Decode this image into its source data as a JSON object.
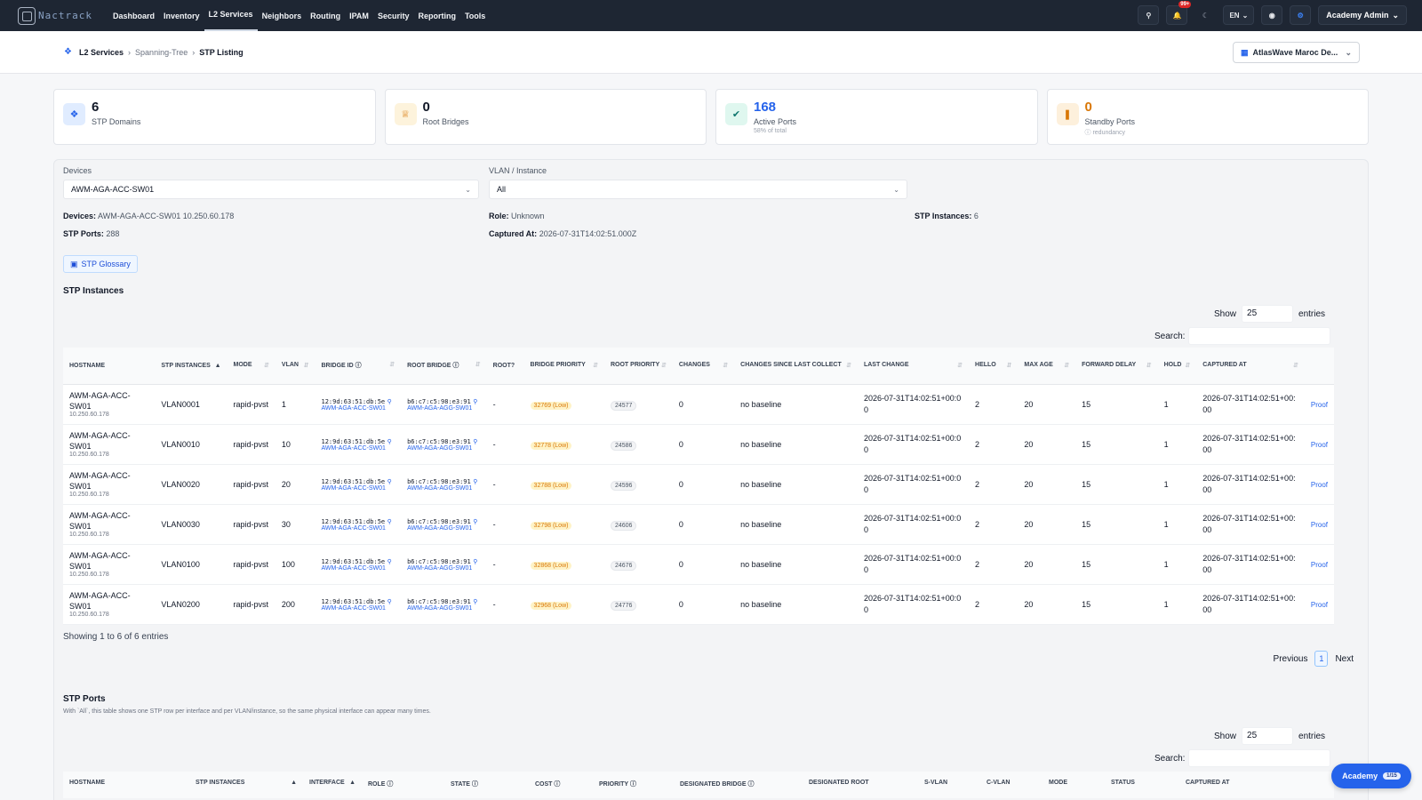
{
  "app": {
    "brand": "Nactrack"
  },
  "nav": [
    "Dashboard",
    "Inventory",
    "L2 Services",
    "Neighbors",
    "Routing",
    "IPAM",
    "Security",
    "Reporting",
    "Tools"
  ],
  "top": {
    "notifications": "99+",
    "lang": "EN",
    "user": "Academy Admin"
  },
  "breadcrumb": {
    "l1": "L2 Services",
    "l2": "Spanning-Tree",
    "l3": "STP Listing"
  },
  "tenant": "AtlasWave Maroc De...",
  "kpis": [
    {
      "value": "6",
      "label": "STP Domains",
      "sub": "",
      "color": "#111827"
    },
    {
      "value": "0",
      "label": "Root Bridges",
      "sub": "",
      "color": "#111827"
    },
    {
      "value": "168",
      "label": "Active Ports",
      "sub": "58% of total",
      "color": "#2563eb"
    },
    {
      "value": "0",
      "label": "Standby Ports",
      "sub": "redundancy",
      "color": "#d97706"
    }
  ],
  "filters": {
    "devices_label": "Devices",
    "devices_value": "AWM-AGA-ACC-SW01",
    "vlan_label": "VLAN / Instance",
    "vlan_value": "All"
  },
  "details": {
    "devices_label": "Devices:",
    "devices_value": "AWM-AGA-ACC-SW01 10.250.60.178",
    "role_label": "Role:",
    "role_value": "Unknown",
    "instances_label": "STP Instances:",
    "instances_value": "6",
    "ports_label": "STP Ports:",
    "ports_value": "288",
    "captured_label": "Captured At:",
    "captured_value": "2026-07-31T14:02:51.000Z"
  },
  "glossary": "STP Glossary",
  "instances": {
    "title": "STP Instances",
    "show": "Show",
    "show_value": "25",
    "entries": "entries",
    "search": "Search:",
    "columns": [
      "HOSTNAME",
      "STP INSTANCES",
      "MODE",
      "VLAN",
      "BRIDGE ID",
      "ROOT BRIDGE",
      "ROOT?",
      "BRIDGE PRIORITY",
      "ROOT PRIORITY",
      "CHANGES",
      "CHANGES SINCE LAST COLLECT",
      "LAST CHANGE",
      "HELLO",
      "MAX AGE",
      "FORWARD DELAY",
      "HOLD",
      "CAPTURED AT",
      ""
    ],
    "rows": [
      {
        "host": "AWM-AGA-ACC-SW01",
        "ip": "10.250.60.178",
        "inst": "VLAN0001",
        "mode": "rapid-pvst",
        "vlan": "1",
        "bid": "12:9d:63:51:db:5e",
        "bid_host": "AWM-AGA-ACC-SW01",
        "rb": "b6:c7:c5:98:e3:91",
        "rb_host": "AWM-AGA-AGG-SW01",
        "root": "-",
        "bprio": "32769 (Low)",
        "rprio": "24577",
        "changes": "0",
        "since": "no baseline",
        "last": "2026-07-31T14:02:51+00:00",
        "hello": "2",
        "maxage": "20",
        "fwd": "15",
        "hold": "1",
        "cap": "2026-07-31T14:02:51+00:00",
        "proof": "Proof"
      },
      {
        "host": "AWM-AGA-ACC-SW01",
        "ip": "10.250.60.178",
        "inst": "VLAN0010",
        "mode": "rapid-pvst",
        "vlan": "10",
        "bid": "12:9d:63:51:db:5e",
        "bid_host": "AWM-AGA-ACC-SW01",
        "rb": "b6:c7:c5:98:e3:91",
        "rb_host": "AWM-AGA-AGG-SW01",
        "root": "-",
        "bprio": "32778 (Low)",
        "rprio": "24586",
        "changes": "0",
        "since": "no baseline",
        "last": "2026-07-31T14:02:51+00:00",
        "hello": "2",
        "maxage": "20",
        "fwd": "15",
        "hold": "1",
        "cap": "2026-07-31T14:02:51+00:00",
        "proof": "Proof"
      },
      {
        "host": "AWM-AGA-ACC-SW01",
        "ip": "10.250.60.178",
        "inst": "VLAN0020",
        "mode": "rapid-pvst",
        "vlan": "20",
        "bid": "12:9d:63:51:db:5e",
        "bid_host": "AWM-AGA-ACC-SW01",
        "rb": "b6:c7:c5:98:e3:91",
        "rb_host": "AWM-AGA-AGG-SW01",
        "root": "-",
        "bprio": "32788 (Low)",
        "rprio": "24596",
        "changes": "0",
        "since": "no baseline",
        "last": "2026-07-31T14:02:51+00:00",
        "hello": "2",
        "maxage": "20",
        "fwd": "15",
        "hold": "1",
        "cap": "2026-07-31T14:02:51+00:00",
        "proof": "Proof"
      },
      {
        "host": "AWM-AGA-ACC-SW01",
        "ip": "10.250.60.178",
        "inst": "VLAN0030",
        "mode": "rapid-pvst",
        "vlan": "30",
        "bid": "12:9d:63:51:db:5e",
        "bid_host": "AWM-AGA-ACC-SW01",
        "rb": "b6:c7:c5:98:e3:91",
        "rb_host": "AWM-AGA-AGG-SW01",
        "root": "-",
        "bprio": "32798 (Low)",
        "rprio": "24606",
        "changes": "0",
        "since": "no baseline",
        "last": "2026-07-31T14:02:51+00:00",
        "hello": "2",
        "maxage": "20",
        "fwd": "15",
        "hold": "1",
        "cap": "2026-07-31T14:02:51+00:00",
        "proof": "Proof"
      },
      {
        "host": "AWM-AGA-ACC-SW01",
        "ip": "10.250.60.178",
        "inst": "VLAN0100",
        "mode": "rapid-pvst",
        "vlan": "100",
        "bid": "12:9d:63:51:db:5e",
        "bid_host": "AWM-AGA-ACC-SW01",
        "rb": "b6:c7:c5:98:e3:91",
        "rb_host": "AWM-AGA-AGG-SW01",
        "root": "-",
        "bprio": "32868 (Low)",
        "rprio": "24676",
        "changes": "0",
        "since": "no baseline",
        "last": "2026-07-31T14:02:51+00:00",
        "hello": "2",
        "maxage": "20",
        "fwd": "15",
        "hold": "1",
        "cap": "2026-07-31T14:02:51+00:00",
        "proof": "Proof"
      },
      {
        "host": "AWM-AGA-ACC-SW01",
        "ip": "10.250.60.178",
        "inst": "VLAN0200",
        "mode": "rapid-pvst",
        "vlan": "200",
        "bid": "12:9d:63:51:db:5e",
        "bid_host": "AWM-AGA-ACC-SW01",
        "rb": "b6:c7:c5:98:e3:91",
        "rb_host": "AWM-AGA-AGG-SW01",
        "root": "-",
        "bprio": "32968 (Low)",
        "rprio": "24776",
        "changes": "0",
        "since": "no baseline",
        "last": "2026-07-31T14:02:51+00:00",
        "hello": "2",
        "maxage": "20",
        "fwd": "15",
        "hold": "1",
        "cap": "2026-07-31T14:02:51+00:00",
        "proof": "Proof"
      }
    ],
    "showing": "Showing 1 to 6 of 6 entries",
    "prev": "Previous",
    "page": "1",
    "next": "Next"
  },
  "ports": {
    "title": "STP Ports",
    "note": "With `All`, this table shows one STP row per interface and per VLAN/instance, so the same physical interface can appear many times.",
    "show": "Show",
    "show_value": "25",
    "entries": "entries",
    "search": "Search:",
    "columns": [
      "HOSTNAME",
      "STP INSTANCES",
      "INTERFACE",
      "ROLE",
      "STATE",
      "COST",
      "PRIORITY",
      "DESIGNATED BRIDGE",
      "DESIGNATED ROOT",
      "S-VLAN",
      "C-VLAN",
      "MODE",
      "STATUS",
      "CAPTURED AT"
    ]
  },
  "academy": {
    "label": "Academy",
    "count": "1/15"
  }
}
